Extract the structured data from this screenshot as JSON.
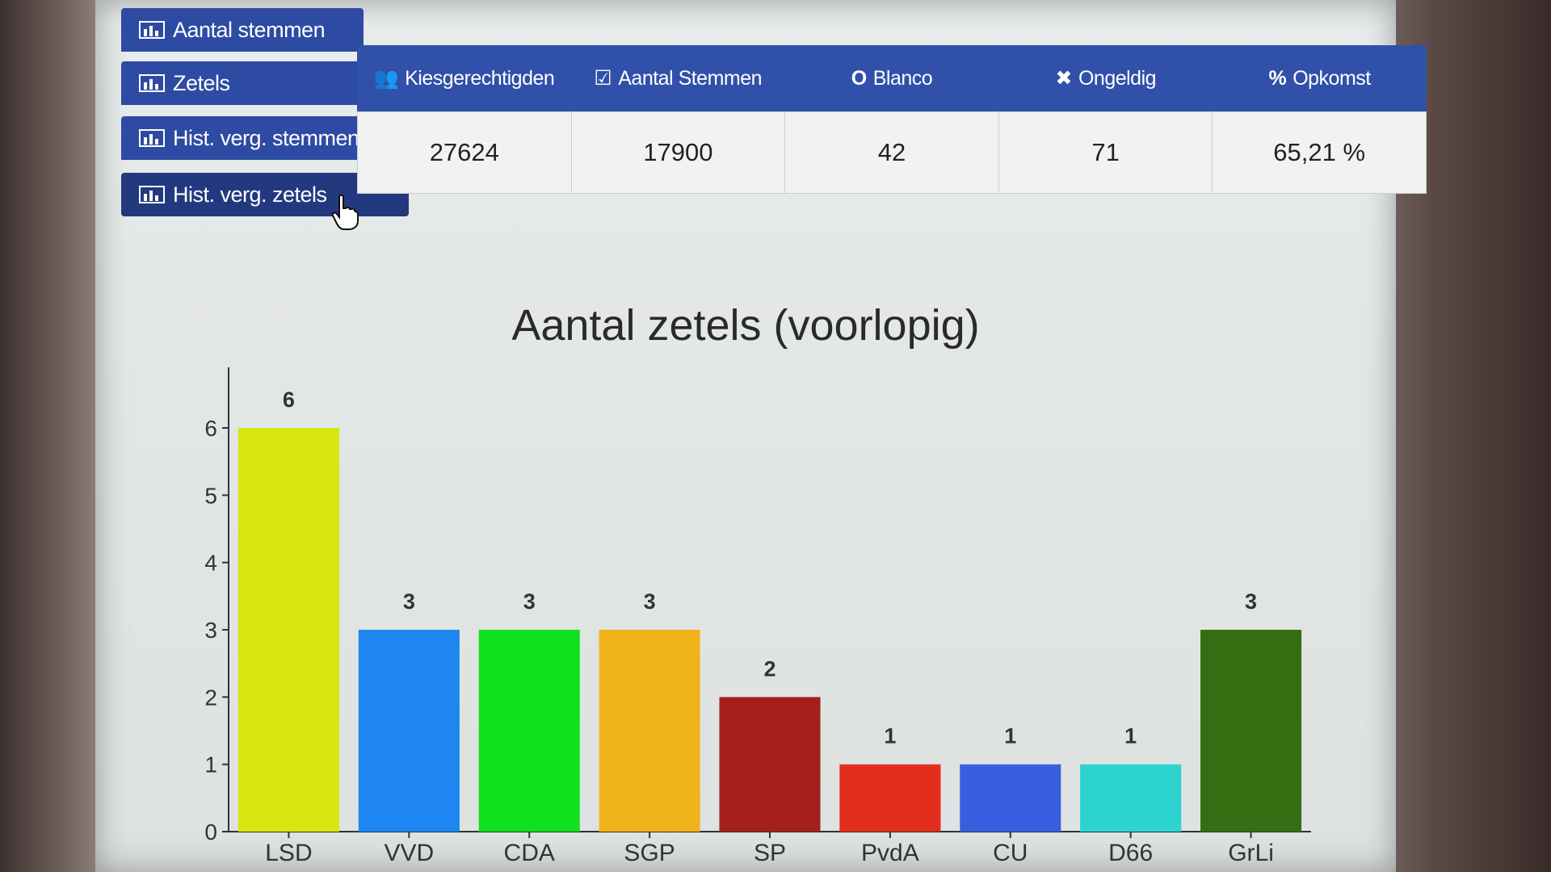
{
  "nav": {
    "items": [
      {
        "label": "Aantal stemmen",
        "active": false
      },
      {
        "label": "Zetels",
        "active": false
      },
      {
        "label": "Hist. verg. stemmen",
        "active": false
      },
      {
        "label": "Hist. verg. zetels",
        "active": true
      }
    ]
  },
  "stats": {
    "headers": [
      {
        "icon": "users-icon",
        "glyph": "👥",
        "label": "Kiesgerechtigden"
      },
      {
        "icon": "check-square-icon",
        "glyph": "☑",
        "label": "Aantal Stemmen"
      },
      {
        "icon": "circle-icon",
        "glyph": "O",
        "label": "Blanco"
      },
      {
        "icon": "x-icon",
        "glyph": "✖",
        "label": "Ongeldig"
      },
      {
        "icon": "percent-icon",
        "glyph": "%",
        "label": "Opkomst"
      }
    ],
    "values": [
      "27624",
      "17900",
      "42",
      "71",
      "65,21 %"
    ]
  },
  "colors": {
    "nav_bg": "#2e4ba3",
    "table_header_bg": "#3150a9"
  },
  "chart_data": {
    "type": "bar",
    "title": "Aantal zetels (voorlopig)",
    "categories": [
      "LSD",
      "VVD",
      "CDA",
      "SGP",
      "SP",
      "PvdA",
      "CU",
      "D66",
      "GrLi"
    ],
    "values": [
      6,
      3,
      3,
      3,
      2,
      1,
      1,
      1,
      3
    ],
    "value_labels": [
      "6",
      "3",
      "3",
      "3",
      "2",
      "1",
      "1",
      "1",
      "3"
    ],
    "colors": [
      "#d6e60e",
      "#1d86f0",
      "#10e01e",
      "#f0b31c",
      "#a51f1c",
      "#e32d1d",
      "#3a5ee0",
      "#2cd3d0",
      "#356e12"
    ],
    "yticks": [
      0,
      1,
      2,
      3,
      4,
      5,
      6
    ],
    "ylim": [
      0,
      6.9
    ],
    "xlabel": "",
    "ylabel": ""
  }
}
